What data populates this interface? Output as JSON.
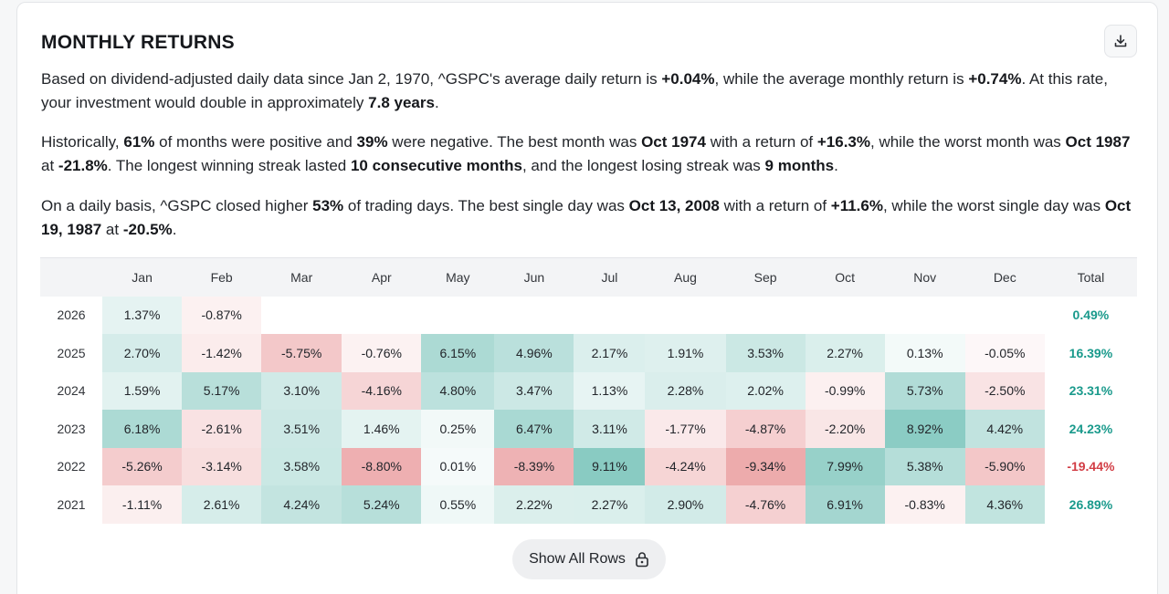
{
  "title": "MONTHLY RETURNS",
  "paragraph1": {
    "t1": "Based on dividend-adjusted daily data since Jan 2, 1970, ^GSPC's average daily return is ",
    "b1": "+0.04%",
    "t2": ", while the average monthly return is ",
    "b2": "+0.74%",
    "t3": ". At this rate, your investment would double in approximately ",
    "b3": "7.8 years",
    "t4": "."
  },
  "paragraph2": {
    "t1": "Historically, ",
    "b1": "61%",
    "t2": " of months were positive and ",
    "b2": "39%",
    "t3": " were negative. The best month was ",
    "b3": "Oct 1974",
    "t4": " with a return of ",
    "b4": "+16.3%",
    "t5": ", while the worst month was ",
    "b5": "Oct 1987",
    "t6": " at ",
    "b6": "-21.8%",
    "t7": ". The longest winning streak lasted ",
    "b7": "10 consecutive months",
    "t8": ", and the longest losing streak was ",
    "b8": "9 months",
    "t9": "."
  },
  "paragraph3": {
    "t1": "On a daily basis, ^GSPC closed higher ",
    "b1": "53%",
    "t2": " of trading days. The best single day was ",
    "b2": "Oct 13, 2008",
    "t3": " with a return of ",
    "b3": "+11.6%",
    "t4": ", while the worst single day was ",
    "b4": "Oct 19, 1987",
    "t5": " at ",
    "b5": "-20.5%",
    "t6": "."
  },
  "table": {
    "headers": [
      "",
      "Jan",
      "Feb",
      "Mar",
      "Apr",
      "May",
      "Jun",
      "Jul",
      "Aug",
      "Sep",
      "Oct",
      "Nov",
      "Dec",
      "Total"
    ],
    "rows": [
      {
        "year": "2026",
        "cells": [
          "1.37%",
          "-0.87%",
          "",
          "",
          "",
          "",
          "",
          "",
          "",
          "",
          "",
          ""
        ],
        "values": [
          1.37,
          -0.87,
          null,
          null,
          null,
          null,
          null,
          null,
          null,
          null,
          null,
          null
        ],
        "total": "0.49%",
        "total_value": 0.49
      },
      {
        "year": "2025",
        "cells": [
          "2.70%",
          "-1.42%",
          "-5.75%",
          "-0.76%",
          "6.15%",
          "4.96%",
          "2.17%",
          "1.91%",
          "3.53%",
          "2.27%",
          "0.13%",
          "-0.05%"
        ],
        "values": [
          2.7,
          -1.42,
          -5.75,
          -0.76,
          6.15,
          4.96,
          2.17,
          1.91,
          3.53,
          2.27,
          0.13,
          -0.05
        ],
        "total": "16.39%",
        "total_value": 16.39
      },
      {
        "year": "2024",
        "cells": [
          "1.59%",
          "5.17%",
          "3.10%",
          "-4.16%",
          "4.80%",
          "3.47%",
          "1.13%",
          "2.28%",
          "2.02%",
          "-0.99%",
          "5.73%",
          "-2.50%"
        ],
        "values": [
          1.59,
          5.17,
          3.1,
          -4.16,
          4.8,
          3.47,
          1.13,
          2.28,
          2.02,
          -0.99,
          5.73,
          -2.5
        ],
        "total": "23.31%",
        "total_value": 23.31
      },
      {
        "year": "2023",
        "cells": [
          "6.18%",
          "-2.61%",
          "3.51%",
          "1.46%",
          "0.25%",
          "6.47%",
          "3.11%",
          "-1.77%",
          "-4.87%",
          "-2.20%",
          "8.92%",
          "4.42%"
        ],
        "values": [
          6.18,
          -2.61,
          3.51,
          1.46,
          0.25,
          6.47,
          3.11,
          -1.77,
          -4.87,
          -2.2,
          8.92,
          4.42
        ],
        "total": "24.23%",
        "total_value": 24.23
      },
      {
        "year": "2022",
        "cells": [
          "-5.26%",
          "-3.14%",
          "3.58%",
          "-8.80%",
          "0.01%",
          "-8.39%",
          "9.11%",
          "-4.24%",
          "-9.34%",
          "7.99%",
          "5.38%",
          "-5.90%"
        ],
        "values": [
          -5.26,
          -3.14,
          3.58,
          -8.8,
          0.01,
          -8.39,
          9.11,
          -4.24,
          -9.34,
          7.99,
          5.38,
          -5.9
        ],
        "total": "-19.44%",
        "total_value": -19.44
      },
      {
        "year": "2021",
        "cells": [
          "-1.11%",
          "2.61%",
          "4.24%",
          "5.24%",
          "0.55%",
          "2.22%",
          "2.27%",
          "2.90%",
          "-4.76%",
          "6.91%",
          "-0.83%",
          "4.36%"
        ],
        "values": [
          -1.11,
          2.61,
          4.24,
          5.24,
          0.55,
          2.22,
          2.27,
          2.9,
          -4.76,
          6.91,
          -0.83,
          4.36
        ],
        "total": "26.89%",
        "total_value": 26.89
      }
    ]
  },
  "colors": {
    "positive": "#6fbfb5",
    "negative": "#e99a9c",
    "total_positive": "#1a9a8c",
    "total_negative": "#d23d45"
  },
  "show_all": {
    "label": "Show All Rows",
    "icon": "lock-icon"
  },
  "download": {
    "icon": "download-icon"
  }
}
